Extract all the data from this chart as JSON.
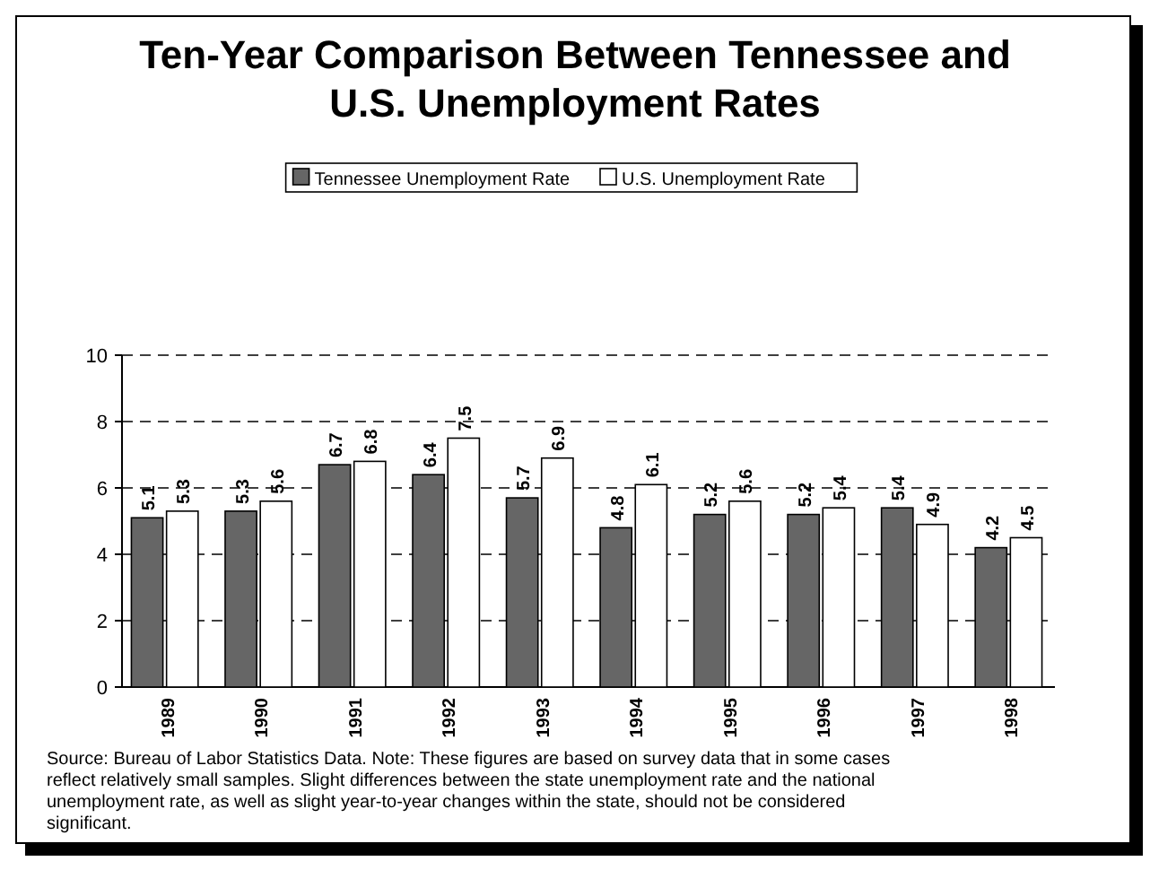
{
  "chart_data": {
    "type": "bar",
    "title": "Ten-Year Comparison Between Tennessee and U.S. Unemployment Rates",
    "categories": [
      "1989",
      "1990",
      "1991",
      "1992",
      "1993",
      "1994",
      "1995",
      "1996",
      "1997",
      "1998"
    ],
    "series": [
      {
        "name": "Tennessee Unemployment Rate",
        "color": "#666666",
        "values": [
          5.1,
          5.3,
          6.7,
          6.4,
          5.7,
          4.8,
          5.2,
          5.2,
          5.4,
          4.2
        ]
      },
      {
        "name": "U.S. Unemployment Rate",
        "color": "#ffffff",
        "values": [
          5.3,
          5.6,
          6.8,
          7.5,
          6.9,
          6.1,
          5.6,
          5.4,
          4.9,
          4.5
        ]
      }
    ],
    "ylim": [
      0,
      10
    ],
    "yticks": [
      0,
      2,
      4,
      6,
      8,
      10
    ],
    "grid": "y",
    "legend": "top",
    "data_labels": true,
    "annotations": [
      "Source:  Bureau of Labor Statistics Data.  Note:  These figures are based on survey data that in some cases reflect relatively small samples. Slight differences between the state unemployment rate and the national unemployment rate, as well as slight year-to-year changes within the state, should not be considered significant."
    ]
  }
}
